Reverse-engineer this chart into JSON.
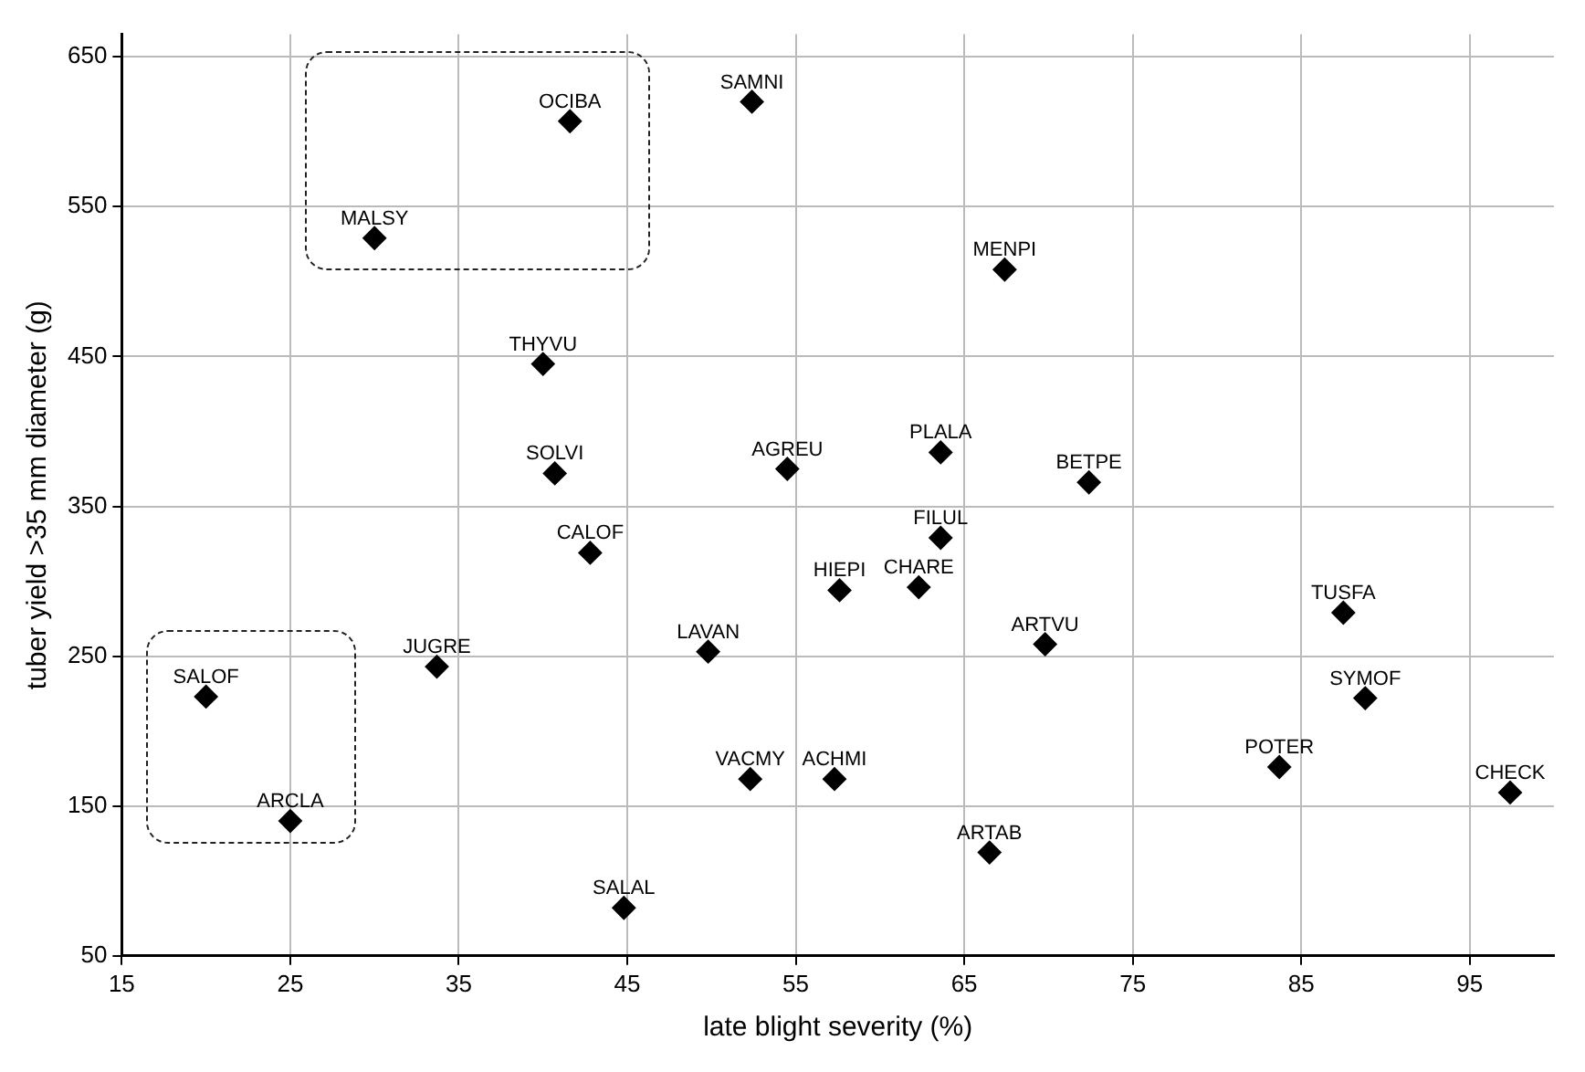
{
  "chart_data": {
    "type": "scatter",
    "xlabel": "late blight severity (%)",
    "ylabel": "tuber yield >35 mm diameter (g)",
    "xlim": [
      15,
      100
    ],
    "ylim": [
      50,
      665
    ],
    "xticks": [
      15,
      25,
      35,
      45,
      55,
      65,
      75,
      85,
      95
    ],
    "yticks": [
      50,
      150,
      250,
      350,
      450,
      550,
      650
    ],
    "grid": true,
    "legend": false,
    "marker": "diamond",
    "series": [
      {
        "name": "OCIBA",
        "color": "#000000",
        "x": [
          41.6
        ],
        "values": [
          607
        ]
      },
      {
        "name": "MALSY",
        "color": "#000000",
        "x": [
          30
        ],
        "values": [
          529
        ]
      },
      {
        "name": "SAMNI",
        "color": "#000000",
        "x": [
          52.4
        ],
        "values": [
          620
        ]
      },
      {
        "name": "THYVU",
        "color": "#000000",
        "x": [
          40
        ],
        "values": [
          445
        ]
      },
      {
        "name": "SOLVI",
        "color": "#000000",
        "x": [
          40.7
        ],
        "values": [
          372
        ]
      },
      {
        "name": "AGREU",
        "color": "#000000",
        "x": [
          54.5
        ],
        "values": [
          375
        ]
      },
      {
        "name": "CALOF",
        "color": "#000000",
        "x": [
          42.8
        ],
        "values": [
          319
        ]
      },
      {
        "name": "MENPI",
        "color": "#000000",
        "x": [
          67.4
        ],
        "values": [
          508
        ]
      },
      {
        "name": "PLALA",
        "color": "#000000",
        "x": [
          63.6
        ],
        "values": [
          386
        ]
      },
      {
        "name": "BETPE",
        "color": "#000000",
        "x": [
          72.4
        ],
        "values": [
          366
        ]
      },
      {
        "name": "FILUL",
        "color": "#000000",
        "x": [
          63.6
        ],
        "values": [
          329
        ]
      },
      {
        "name": "HIEPI",
        "color": "#000000",
        "x": [
          57.6
        ],
        "values": [
          294
        ]
      },
      {
        "name": "CHARE",
        "color": "#000000",
        "x": [
          62.3
        ],
        "values": [
          296
        ]
      },
      {
        "name": "TUSFA",
        "color": "#000000",
        "x": [
          87.5
        ],
        "values": [
          279
        ]
      },
      {
        "name": "ARTVU",
        "color": "#000000",
        "x": [
          69.8
        ],
        "values": [
          258
        ]
      },
      {
        "name": "LAVAN",
        "color": "#000000",
        "x": [
          49.8
        ],
        "values": [
          253
        ]
      },
      {
        "name": "JUGRE",
        "color": "#000000",
        "x": [
          33.7
        ],
        "values": [
          243
        ]
      },
      {
        "name": "SALOF",
        "color": "#000000",
        "x": [
          20
        ],
        "values": [
          223
        ]
      },
      {
        "name": "SYMOF",
        "color": "#000000",
        "x": [
          88.8
        ],
        "values": [
          222
        ]
      },
      {
        "name": "POTER",
        "color": "#000000",
        "x": [
          83.7
        ],
        "values": [
          176
        ]
      },
      {
        "name": "VACMY",
        "color": "#000000",
        "x": [
          52.3
        ],
        "values": [
          168
        ]
      },
      {
        "name": "ACHMI",
        "color": "#000000",
        "x": [
          57.3
        ],
        "values": [
          168
        ]
      },
      {
        "name": "CHECK",
        "color": "#000000",
        "x": [
          97.4
        ],
        "values": [
          159
        ]
      },
      {
        "name": "ARCLA",
        "color": "#000000",
        "x": [
          25
        ],
        "values": [
          140
        ]
      },
      {
        "name": "ARTAB",
        "color": "#000000",
        "x": [
          66.5
        ],
        "values": [
          119
        ]
      },
      {
        "name": "SALAL",
        "color": "#000000",
        "x": [
          44.8
        ],
        "values": [
          82
        ]
      }
    ]
  }
}
